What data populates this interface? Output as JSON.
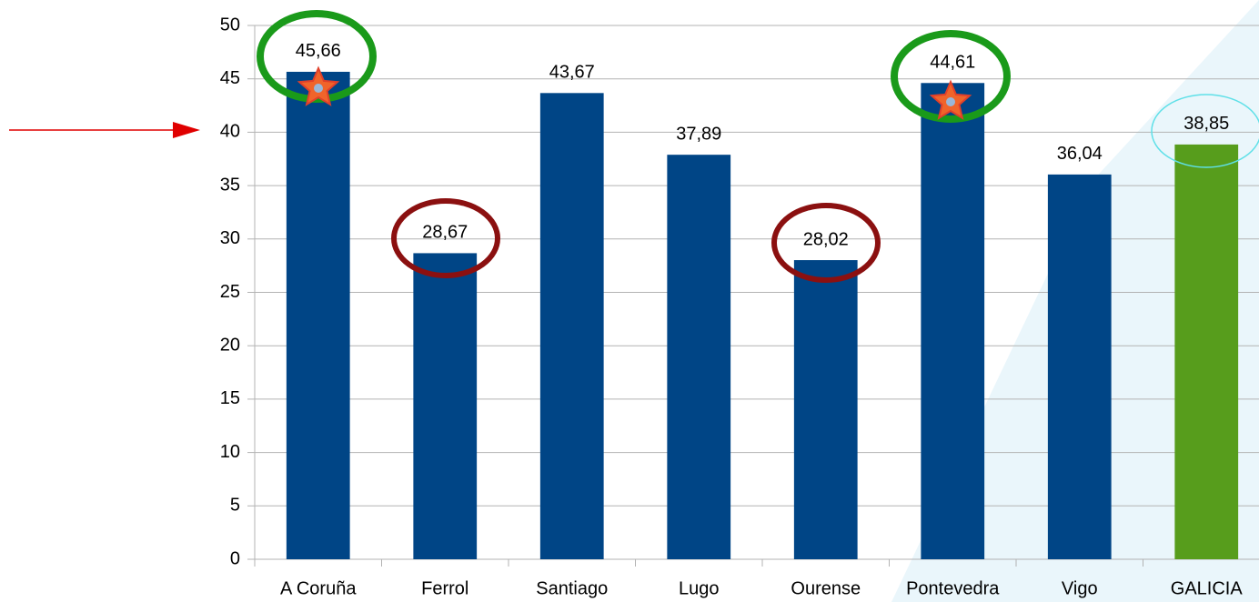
{
  "chart_data": {
    "type": "bar",
    "categories": [
      "A Coruña",
      "Ferrol",
      "Santiago",
      "Lugo",
      "Ourense",
      "Pontevedra",
      "Vigo",
      "GALICIA"
    ],
    "values": [
      45.66,
      28.67,
      43.67,
      37.89,
      28.02,
      44.61,
      36.04,
      38.85
    ],
    "value_labels": [
      "45,66",
      "28,67",
      "43,67",
      "37,89",
      "28,02",
      "44,61",
      "36,04",
      "38,85"
    ],
    "colors": [
      "#004586",
      "#004586",
      "#004586",
      "#004586",
      "#004586",
      "#004586",
      "#004586",
      "#579d1c"
    ],
    "ylim": [
      0,
      50
    ],
    "yticks": [
      0,
      5,
      10,
      15,
      20,
      25,
      30,
      35,
      40,
      45,
      50
    ],
    "grid": true
  }
}
